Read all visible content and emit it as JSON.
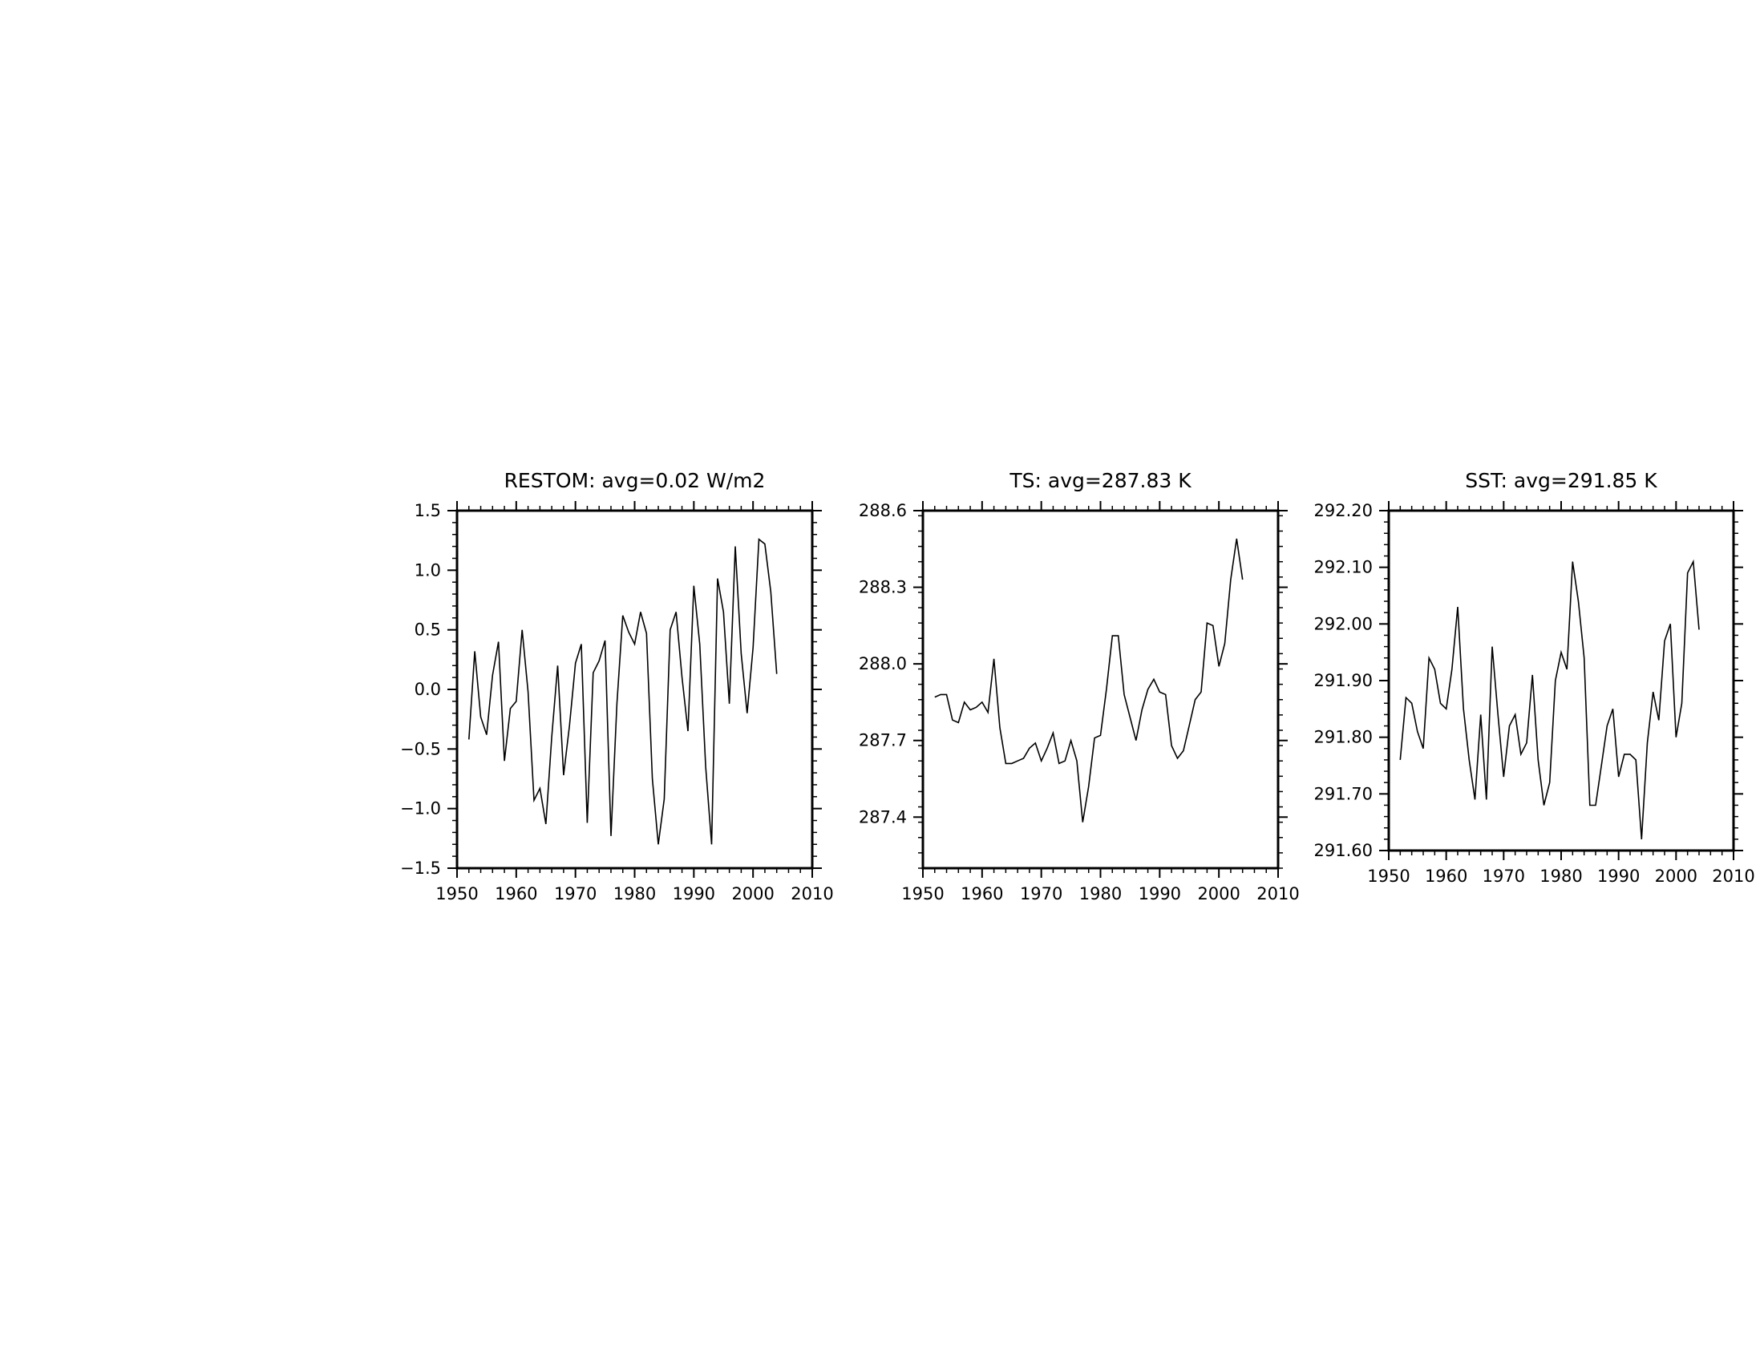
{
  "chart_data": [
    {
      "type": "line",
      "title": "RESTOM: avg=0.02 W/m2",
      "xlabel": "",
      "ylabel": "",
      "xlim": [
        1950,
        2010
      ],
      "ylim": [
        -1.5,
        1.5
      ],
      "x_ticks": [
        1950,
        1960,
        1970,
        1980,
        1990,
        2000,
        2010
      ],
      "x_tick_labels": [
        "1950",
        "1960",
        "1970",
        "1980",
        "1990",
        "2000",
        "2010"
      ],
      "y_ticks": [
        -1.5,
        -1.0,
        -0.5,
        0.0,
        0.5,
        1.0,
        1.5
      ],
      "y_tick_labels": [
        "−1.5",
        "−1.0",
        "−0.5",
        "0.0",
        "0.5",
        "1.0",
        "1.5"
      ],
      "grid": false,
      "color": "#000000",
      "x": [
        1952,
        1953,
        1954,
        1955,
        1956,
        1957,
        1958,
        1959,
        1960,
        1961,
        1962,
        1963,
        1964,
        1965,
        1966,
        1967,
        1968,
        1969,
        1970,
        1971,
        1972,
        1973,
        1974,
        1975,
        1976,
        1977,
        1978,
        1979,
        1980,
        1981,
        1982,
        1983,
        1984,
        1985,
        1986,
        1987,
        1988,
        1989,
        1990,
        1991,
        1992,
        1993,
        1994,
        1995,
        1996,
        1997,
        1998,
        1999,
        2000,
        2001,
        2002,
        2003,
        2004
      ],
      "y": [
        -0.42,
        0.32,
        -0.23,
        -0.38,
        0.12,
        0.4,
        -0.6,
        -0.16,
        -0.1,
        0.5,
        -0.02,
        -0.93,
        -0.83,
        -1.13,
        -0.4,
        0.2,
        -0.72,
        -0.3,
        0.22,
        0.38,
        -1.12,
        0.14,
        0.24,
        0.41,
        -1.23,
        -0.12,
        0.62,
        0.48,
        0.38,
        0.65,
        0.47,
        -0.75,
        -1.3,
        -0.92,
        0.5,
        0.65,
        0.1,
        -0.35,
        0.87,
        0.38,
        -0.65,
        -1.3,
        0.93,
        0.65,
        -0.12,
        1.2,
        0.3,
        -0.2,
        0.35,
        1.26,
        1.22,
        0.82,
        0.13
      ]
    },
    {
      "type": "line",
      "title": "TS: avg=287.83 K",
      "xlabel": "",
      "ylabel": "",
      "xlim": [
        1950,
        2010
      ],
      "ylim": [
        287.2,
        288.6
      ],
      "x_ticks": [
        1950,
        1960,
        1970,
        1980,
        1990,
        2000,
        2010
      ],
      "x_tick_labels": [
        "1950",
        "1960",
        "1970",
        "1980",
        "1990",
        "2000",
        "2010"
      ],
      "y_ticks": [
        287.4,
        287.7,
        288.0,
        288.3,
        288.6
      ],
      "y_tick_labels": [
        "287.4",
        "287.7",
        "288.0",
        "288.3",
        "288.6"
      ],
      "grid": false,
      "color": "#000000",
      "x": [
        1952,
        1953,
        1954,
        1955,
        1956,
        1957,
        1958,
        1959,
        1960,
        1961,
        1962,
        1963,
        1964,
        1965,
        1966,
        1967,
        1968,
        1969,
        1970,
        1971,
        1972,
        1973,
        1974,
        1975,
        1976,
        1977,
        1978,
        1979,
        1980,
        1981,
        1982,
        1983,
        1984,
        1985,
        1986,
        1987,
        1988,
        1989,
        1990,
        1991,
        1992,
        1993,
        1994,
        1995,
        1996,
        1997,
        1998,
        1999,
        2000,
        2001,
        2002,
        2003,
        2004
      ],
      "y": [
        287.87,
        287.88,
        287.88,
        287.78,
        287.77,
        287.85,
        287.82,
        287.83,
        287.85,
        287.81,
        288.02,
        287.75,
        287.61,
        287.61,
        287.62,
        287.63,
        287.67,
        287.69,
        287.62,
        287.67,
        287.73,
        287.61,
        287.62,
        287.7,
        287.62,
        287.38,
        287.52,
        287.71,
        287.72,
        287.9,
        288.11,
        288.11,
        287.88,
        287.79,
        287.7,
        287.82,
        287.9,
        287.94,
        287.89,
        287.88,
        287.68,
        287.63,
        287.66,
        287.76,
        287.86,
        287.89,
        288.16,
        288.15,
        287.99,
        288.08,
        288.33,
        288.49,
        288.33
      ]
    },
    {
      "type": "line",
      "title": "SST: avg=291.85 K",
      "xlabel": "",
      "ylabel": "",
      "xlim": [
        1950,
        2010
      ],
      "ylim": [
        291.6,
        292.2
      ],
      "x_ticks": [
        1950,
        1960,
        1970,
        1980,
        1990,
        2000,
        2010
      ],
      "x_tick_labels": [
        "1950",
        "1960",
        "1970",
        "1980",
        "1990",
        "2000",
        "2010"
      ],
      "y_ticks": [
        291.6,
        291.7,
        291.8,
        291.9,
        292.0,
        292.1,
        292.2
      ],
      "y_tick_labels": [
        "291.60",
        "291.70",
        "291.80",
        "291.90",
        "292.00",
        "292.10",
        "292.20"
      ],
      "grid": false,
      "color": "#000000",
      "x": [
        1952,
        1953,
        1954,
        1955,
        1956,
        1957,
        1958,
        1959,
        1960,
        1961,
        1962,
        1963,
        1964,
        1965,
        1966,
        1967,
        1968,
        1969,
        1970,
        1971,
        1972,
        1973,
        1974,
        1975,
        1976,
        1977,
        1978,
        1979,
        1980,
        1981,
        1982,
        1983,
        1984,
        1985,
        1986,
        1987,
        1988,
        1989,
        1990,
        1991,
        1992,
        1993,
        1994,
        1995,
        1996,
        1997,
        1998,
        1999,
        2000,
        2001,
        2002,
        2003,
        2004
      ],
      "y": [
        291.76,
        291.87,
        291.86,
        291.81,
        291.78,
        291.94,
        291.92,
        291.86,
        291.85,
        291.92,
        292.03,
        291.85,
        291.76,
        291.69,
        291.84,
        291.69,
        291.96,
        291.84,
        291.73,
        291.82,
        291.84,
        291.77,
        291.79,
        291.91,
        291.76,
        291.68,
        291.72,
        291.9,
        291.95,
        291.92,
        292.11,
        292.04,
        291.94,
        291.68,
        291.68,
        291.75,
        291.82,
        291.85,
        291.73,
        291.77,
        291.77,
        291.76,
        291.62,
        291.79,
        291.88,
        291.83,
        291.97,
        292.0,
        291.8,
        291.86,
        292.09,
        292.11,
        291.99
      ]
    }
  ]
}
